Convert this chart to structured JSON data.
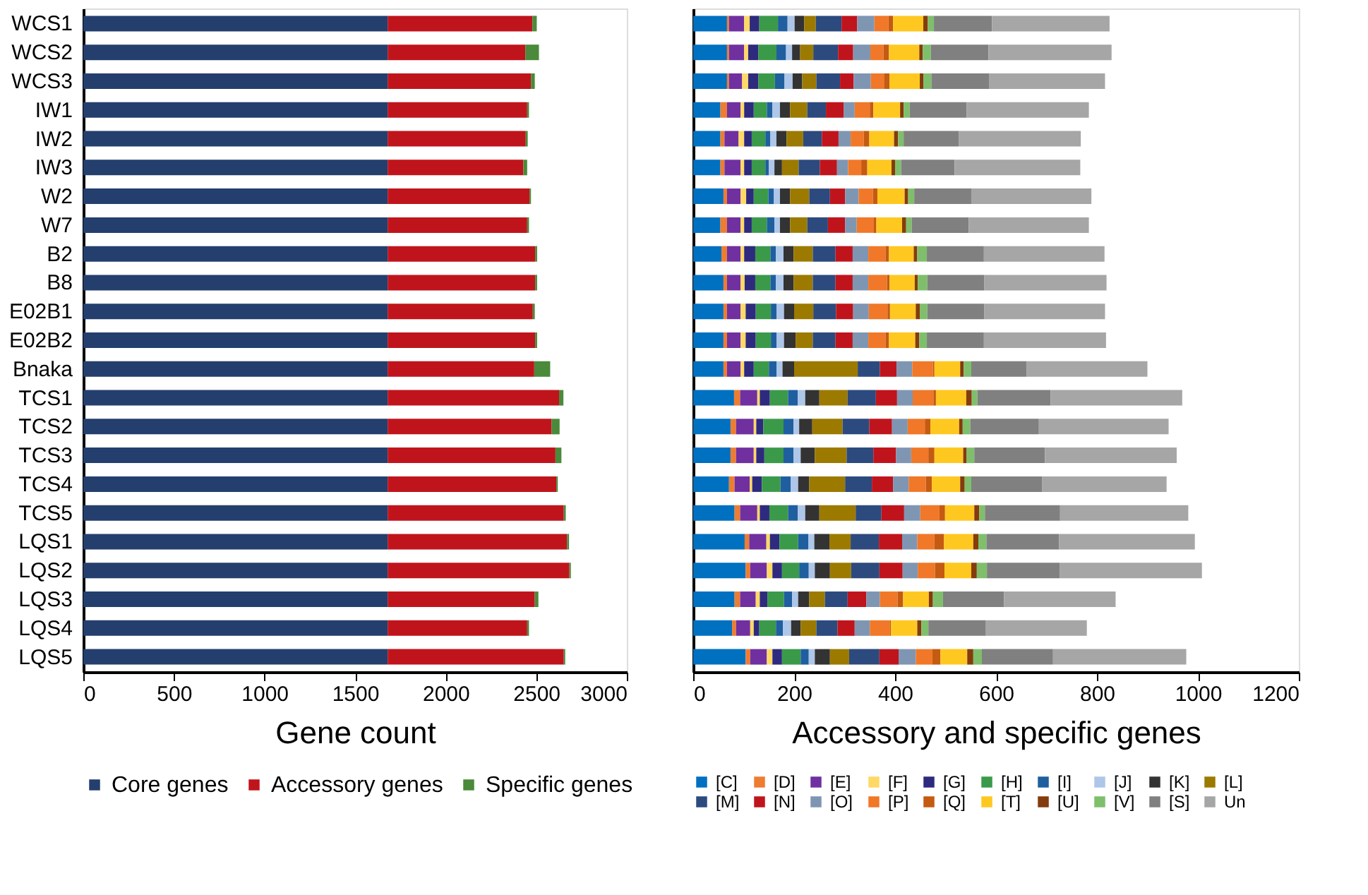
{
  "chart_data": [
    {
      "type": "bar",
      "orientation": "horizontal",
      "stacked": true,
      "xlabel": "Gene count",
      "legend": "bottom",
      "grid": false,
      "categories": [
        "WCS1",
        "WCS2",
        "WCS3",
        "IW1",
        "IW2",
        "IW3",
        "W2",
        "W7",
        "B2",
        "B8",
        "E02B1",
        "E02B2",
        "Bnaka",
        "TCS1",
        "TCS2",
        "TCS3",
        "TCS4",
        "TCS5",
        "LQS1",
        "LQS2",
        "LQS3",
        "LQS4",
        "LQS5"
      ],
      "xlim": [
        0,
        3000
      ],
      "xticks": [
        0,
        500,
        1000,
        1500,
        2000,
        2500,
        3000
      ],
      "series": [
        {
          "name": "Core genes",
          "color": "#243f6e",
          "values": [
            1680,
            1680,
            1680,
            1680,
            1680,
            1680,
            1680,
            1680,
            1680,
            1680,
            1680,
            1680,
            1680,
            1680,
            1680,
            1680,
            1680,
            1680,
            1680,
            1680,
            1680,
            1680,
            1680
          ]
        },
        {
          "name": "Accessory genes",
          "color": "#c0141c",
          "values": [
            799,
            760,
            791,
            770,
            762,
            749,
            783,
            770,
            814,
            814,
            801,
            814,
            809,
            946,
            905,
            926,
            931,
            972,
            990,
            1003,
            812,
            770,
            972
          ]
        },
        {
          "name": "Specific genes",
          "color": "#4a8a3a",
          "values": [
            24,
            75,
            21,
            10,
            11,
            21,
            8,
            10,
            11,
            11,
            11,
            11,
            88,
            24,
            44,
            33,
            8,
            11,
            11,
            8,
            20,
            10,
            8
          ]
        }
      ]
    },
    {
      "type": "bar",
      "orientation": "horizontal",
      "stacked": true,
      "xlabel": "Accessory and specific genes",
      "legend": "bottom",
      "grid": false,
      "tick_labels": "x",
      "categories": [
        null,
        null,
        null,
        null,
        null,
        null,
        null,
        null,
        null,
        null,
        null,
        null,
        null,
        null,
        null,
        null,
        null,
        null,
        null,
        null,
        null,
        null,
        null
      ],
      "xlim": [
        0,
        1200
      ],
      "xticks": [
        0,
        200,
        400,
        600,
        800,
        1000,
        1200
      ],
      "series": [
        {
          "name": "[C]",
          "color": "#0070c0",
          "values": [
            67,
            67,
            67,
            54,
            54,
            54,
            60,
            54,
            56,
            60,
            60,
            60,
            60,
            81,
            74,
            74,
            71,
            82,
            102,
            104,
            82,
            77,
            104
          ]
        },
        {
          "name": "[D]",
          "color": "#ed7d31",
          "values": [
            4,
            4,
            4,
            13,
            8,
            8,
            7,
            13,
            11,
            7,
            7,
            7,
            7,
            12,
            11,
            11,
            11,
            11,
            9,
            9,
            11,
            8,
            9
          ]
        },
        {
          "name": "[E]",
          "color": "#7030a0",
          "values": [
            30,
            30,
            26,
            27,
            28,
            32,
            27,
            27,
            27,
            27,
            27,
            27,
            27,
            34,
            35,
            35,
            30,
            34,
            34,
            33,
            31,
            28,
            33
          ]
        },
        {
          "name": "[F]",
          "color": "#ffd966",
          "values": [
            11,
            8,
            12,
            7,
            11,
            7,
            11,
            7,
            7,
            8,
            10,
            10,
            7,
            5,
            5,
            5,
            5,
            5,
            7,
            11,
            8,
            7,
            11
          ]
        },
        {
          "name": "[G]",
          "color": "#2e2a7e",
          "values": [
            19,
            20,
            20,
            19,
            15,
            15,
            15,
            15,
            22,
            21,
            20,
            20,
            19,
            20,
            14,
            16,
            19,
            19,
            19,
            19,
            15,
            11,
            19
          ]
        },
        {
          "name": "[H]",
          "color": "#3a9a4a",
          "values": [
            37,
            36,
            33,
            26,
            27,
            27,
            29,
            30,
            30,
            30,
            30,
            30,
            30,
            36,
            40,
            38,
            37,
            37,
            37,
            34,
            33,
            33,
            37
          ]
        },
        {
          "name": "[I]",
          "color": "#1f5f9f",
          "values": [
            19,
            19,
            19,
            11,
            10,
            7,
            11,
            15,
            11,
            11,
            11,
            11,
            15,
            19,
            20,
            20,
            20,
            19,
            20,
            19,
            16,
            14,
            16
          ]
        },
        {
          "name": "[J]",
          "color": "#aec6e8",
          "values": [
            14,
            12,
            16,
            15,
            12,
            11,
            12,
            11,
            15,
            15,
            15,
            15,
            12,
            15,
            11,
            14,
            15,
            15,
            12,
            12,
            12,
            16,
            12
          ]
        },
        {
          "name": "[K]",
          "color": "#333333",
          "values": [
            19,
            16,
            19,
            20,
            20,
            15,
            20,
            20,
            20,
            20,
            20,
            23,
            23,
            28,
            26,
            28,
            22,
            28,
            30,
            30,
            22,
            19,
            30
          ]
        },
        {
          "name": "[L]",
          "color": "#9c7a00",
          "values": [
            23,
            26,
            28,
            34,
            33,
            33,
            38,
            34,
            38,
            38,
            38,
            34,
            126,
            56,
            60,
            63,
            71,
            72,
            42,
            42,
            31,
            31,
            38
          ]
        },
        {
          "name": "[M]",
          "color": "#2c4a7e",
          "values": [
            51,
            49,
            47,
            37,
            37,
            42,
            41,
            41,
            45,
            45,
            45,
            45,
            44,
            56,
            53,
            53,
            53,
            51,
            56,
            56,
            45,
            42,
            60
          ]
        },
        {
          "name": "[N]",
          "color": "#c0141c",
          "values": [
            31,
            30,
            27,
            35,
            33,
            34,
            30,
            34,
            34,
            34,
            34,
            34,
            33,
            42,
            45,
            45,
            42,
            45,
            46,
            46,
            37,
            34,
            38
          ]
        },
        {
          "name": "[O]",
          "color": "#7f96b3",
          "values": [
            34,
            34,
            34,
            22,
            24,
            22,
            27,
            23,
            31,
            31,
            31,
            31,
            31,
            31,
            31,
            30,
            31,
            32,
            30,
            30,
            27,
            30,
            34
          ]
        },
        {
          "name": "[P]",
          "color": "#f07828",
          "values": [
            28,
            26,
            26,
            30,
            26,
            26,
            28,
            34,
            34,
            37,
            37,
            34,
            41,
            41,
            34,
            34,
            34,
            38,
            34,
            34,
            35,
            40,
            33
          ]
        },
        {
          "name": "[Q]",
          "color": "#c55a11",
          "values": [
            9,
            11,
            11,
            7,
            11,
            12,
            9,
            5,
            7,
            5,
            5,
            7,
            3,
            5,
            11,
            12,
            12,
            11,
            19,
            19,
            11,
            2,
            16
          ]
        },
        {
          "name": "[T]",
          "color": "#ffc820",
          "values": [
            60,
            60,
            60,
            53,
            49,
            48,
            54,
            51,
            49,
            50,
            51,
            52,
            51,
            60,
            57,
            57,
            56,
            58,
            58,
            53,
            51,
            52,
            53
          ]
        },
        {
          "name": "[U]",
          "color": "#843c0c",
          "values": [
            9,
            7,
            7,
            7,
            8,
            7,
            7,
            8,
            7,
            6,
            8,
            8,
            7,
            11,
            7,
            7,
            9,
            10,
            10,
            11,
            8,
            8,
            12
          ]
        },
        {
          "name": "[V]",
          "color": "#7fbf6b",
          "values": [
            12,
            16,
            16,
            12,
            11,
            12,
            12,
            11,
            19,
            19,
            15,
            15,
            15,
            11,
            15,
            15,
            13,
            11,
            16,
            20,
            20,
            14,
            17
          ]
        },
        {
          "name": "[S]",
          "color": "#808080",
          "values": [
            115,
            114,
            114,
            113,
            109,
            106,
            113,
            113,
            113,
            113,
            113,
            113,
            110,
            145,
            136,
            140,
            140,
            149,
            144,
            144,
            121,
            114,
            141
          ]
        },
        {
          "name": "Un",
          "color": "#a6a6a6",
          "values": [
            233,
            244,
            230,
            242,
            242,
            249,
            238,
            238,
            239,
            242,
            239,
            242,
            239,
            261,
            257,
            261,
            247,
            254,
            269,
            282,
            221,
            200,
            264
          ]
        }
      ]
    }
  ]
}
